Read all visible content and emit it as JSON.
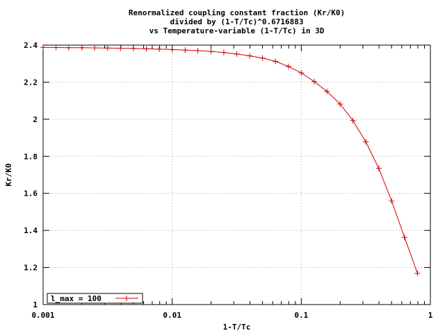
{
  "chart_data": {
    "type": "line",
    "title_lines": [
      "Renormalized coupling constant fraction (Kr/K0)",
      "divided by (1-T/Tc)^0.6716883",
      "vs Temperature-variable (1-T/Tc) in 3D"
    ],
    "xlabel": "1-T/Tc",
    "ylabel": "Kr/K0",
    "xscale": "log",
    "xlim": [
      0.001,
      1
    ],
    "ylim": [
      1,
      2.4
    ],
    "grid": true,
    "legend_position": "bottom-left",
    "x_ticks": [
      {
        "value": 0.001,
        "label": "0.001"
      },
      {
        "value": 0.01,
        "label": "0.01"
      },
      {
        "value": 0.1,
        "label": "0.1"
      },
      {
        "value": 1,
        "label": "1"
      }
    ],
    "y_ticks": [
      {
        "value": 1,
        "label": "1"
      },
      {
        "value": 1.2,
        "label": "1.2"
      },
      {
        "value": 1.4,
        "label": "1.4"
      },
      {
        "value": 1.6,
        "label": "1.6"
      },
      {
        "value": 1.8,
        "label": "1.8"
      },
      {
        "value": 2,
        "label": "2"
      },
      {
        "value": 2.2,
        "label": "2.2"
      },
      {
        "value": 2.4,
        "label": "2.4"
      }
    ],
    "series": [
      {
        "name": "l_max = 100",
        "color": "#cc0000",
        "marker": "plus",
        "x": [
          0.001,
          0.00126,
          0.00158,
          0.002,
          0.00251,
          0.00316,
          0.00398,
          0.00501,
          0.00631,
          0.00794,
          0.01,
          0.0126,
          0.0158,
          0.02,
          0.0251,
          0.0316,
          0.0398,
          0.0501,
          0.0631,
          0.0794,
          0.1,
          0.126,
          0.158,
          0.2,
          0.251,
          0.316,
          0.398,
          0.501,
          0.631,
          0.794
        ],
        "y": [
          2.388,
          2.387,
          2.386,
          2.386,
          2.385,
          2.384,
          2.383,
          2.382,
          2.38,
          2.378,
          2.376,
          2.373,
          2.37,
          2.366,
          2.36,
          2.352,
          2.342,
          2.33,
          2.312,
          2.285,
          2.25,
          2.203,
          2.15,
          2.082,
          1.993,
          1.878,
          1.735,
          1.558,
          1.362,
          1.168
        ]
      }
    ]
  }
}
